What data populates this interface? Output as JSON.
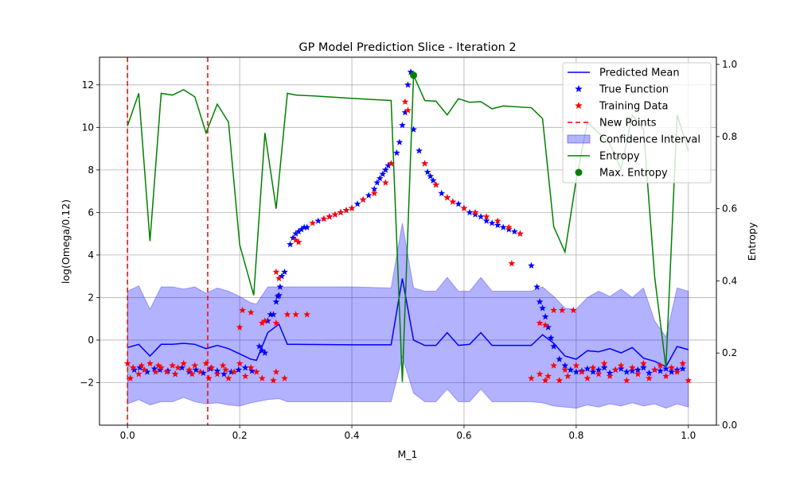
{
  "chart_data": {
    "type": "line",
    "title": "GP Model Prediction Slice - Iteration 2",
    "xlabel": "M_1",
    "ylabel": "log(Omega/0.12)",
    "y2label": "Entropy",
    "xlim": [
      -0.05,
      1.05
    ],
    "ylim": [
      -4.0,
      13.3
    ],
    "y2lim": [
      0.0,
      1.02
    ],
    "xticks": [
      0.0,
      0.2,
      0.4,
      0.6,
      0.8,
      1.0
    ],
    "xtick_labels": [
      "0.0",
      "0.2",
      "0.4",
      "0.6",
      "0.8",
      "1.0"
    ],
    "yticks": [
      -2,
      0,
      2,
      4,
      6,
      8,
      10,
      12
    ],
    "ytick_labels": [
      "−2",
      "0",
      "2",
      "4",
      "6",
      "8",
      "10",
      "12"
    ],
    "y2ticks": [
      0.0,
      0.2,
      0.4,
      0.6,
      0.8,
      1.0
    ],
    "y2tick_labels": [
      "0.0",
      "0.2",
      "0.4",
      "0.6",
      "0.8",
      "1.0"
    ],
    "grid": true,
    "legend_position": "top-right",
    "legend": [
      {
        "key": "mean",
        "label": "Predicted Mean"
      },
      {
        "key": "true",
        "label": "True Function"
      },
      {
        "key": "train",
        "label": "Training Data"
      },
      {
        "key": "new",
        "label": "New Points"
      },
      {
        "key": "ci",
        "label": "Confidence Interval"
      },
      {
        "key": "entropy",
        "label": "Entropy"
      },
      {
        "key": "maxent",
        "label": "Max. Entropy"
      }
    ],
    "colors": {
      "mean": "#0000ff",
      "true": "#0000ff",
      "train": "#ff0000",
      "new": "#ff0000",
      "ci": "#0000ff",
      "entropy": "#008000",
      "maxent": "#008000"
    },
    "new_points_x": [
      0.0,
      0.143
    ],
    "max_entropy_point": {
      "x": 0.51,
      "entropy": 0.97
    },
    "predicted_mean": {
      "x": [
        0.0,
        0.02,
        0.04,
        0.06,
        0.08,
        0.1,
        0.12,
        0.14,
        0.16,
        0.18,
        0.2,
        0.22,
        0.23,
        0.25,
        0.27,
        0.285,
        0.3,
        0.4,
        0.47,
        0.49,
        0.51,
        0.53,
        0.55,
        0.57,
        0.59,
        0.61,
        0.63,
        0.65,
        0.67,
        0.69,
        0.72,
        0.74,
        0.76,
        0.78,
        0.8,
        0.82,
        0.84,
        0.86,
        0.88,
        0.9,
        0.92,
        0.94,
        0.96,
        0.98,
        1.0
      ],
      "y": [
        -0.35,
        -0.2,
        -0.75,
        -0.2,
        -0.2,
        -0.15,
        -0.2,
        -0.4,
        -0.25,
        -0.4,
        -0.65,
        -0.9,
        -0.95,
        0.35,
        0.75,
        -0.2,
        -0.2,
        -0.22,
        -0.22,
        2.9,
        0.0,
        -0.25,
        -0.25,
        0.35,
        -0.25,
        -0.2,
        0.35,
        -0.25,
        -0.25,
        -0.25,
        -0.25,
        0.25,
        -0.15,
        -0.75,
        -0.9,
        -0.5,
        -0.55,
        -0.4,
        -0.6,
        -0.35,
        -0.85,
        -1.0,
        -1.25,
        -0.3,
        -0.45
      ]
    },
    "confidence_interval": {
      "x": [
        0.0,
        0.02,
        0.04,
        0.06,
        0.08,
        0.1,
        0.12,
        0.14,
        0.16,
        0.18,
        0.2,
        0.22,
        0.23,
        0.25,
        0.27,
        0.285,
        0.3,
        0.4,
        0.47,
        0.49,
        0.51,
        0.53,
        0.55,
        0.57,
        0.59,
        0.61,
        0.63,
        0.65,
        0.67,
        0.69,
        0.72,
        0.74,
        0.76,
        0.78,
        0.8,
        0.82,
        0.84,
        0.86,
        0.88,
        0.9,
        0.92,
        0.94,
        0.96,
        0.98,
        1.0
      ],
      "upper": [
        2.3,
        2.55,
        1.45,
        2.5,
        2.5,
        2.4,
        2.5,
        2.2,
        2.45,
        2.3,
        2.05,
        1.75,
        1.7,
        2.5,
        2.5,
        2.5,
        2.5,
        2.5,
        2.45,
        5.5,
        2.45,
        2.3,
        2.3,
        2.95,
        2.3,
        2.3,
        2.95,
        2.3,
        2.3,
        2.3,
        2.3,
        2.5,
        2.05,
        1.5,
        1.45,
        2.0,
        2.3,
        2.05,
        2.4,
        2.0,
        2.45,
        0.9,
        0.15,
        2.45,
        2.3
      ],
      "lower": [
        -3.0,
        -2.8,
        -3.05,
        -2.9,
        -2.9,
        -2.7,
        -2.9,
        -3.0,
        -2.95,
        -3.05,
        -3.1,
        -2.95,
        -2.9,
        -2.8,
        -2.75,
        -2.9,
        -2.9,
        -2.9,
        -2.9,
        -0.8,
        -2.5,
        -2.9,
        -2.9,
        -2.3,
        -2.9,
        -2.9,
        -2.3,
        -2.9,
        -2.9,
        -2.9,
        -2.9,
        -2.95,
        -3.1,
        -3.15,
        -3.2,
        -3.05,
        -3.15,
        -3.0,
        -3.1,
        -2.95,
        -3.1,
        -3.0,
        -3.2,
        -3.0,
        -3.15
      ]
    },
    "entropy": {
      "x": [
        0.0,
        0.02,
        0.04,
        0.06,
        0.08,
        0.1,
        0.12,
        0.14,
        0.16,
        0.18,
        0.2,
        0.225,
        0.245,
        0.265,
        0.285,
        0.3,
        0.33,
        0.4,
        0.47,
        0.49,
        0.51,
        0.53,
        0.55,
        0.57,
        0.59,
        0.61,
        0.63,
        0.65,
        0.67,
        0.69,
        0.72,
        0.74,
        0.76,
        0.78,
        0.8,
        0.82,
        0.84,
        0.86,
        0.88,
        0.9,
        0.92,
        0.94,
        0.96,
        0.98,
        1.0
      ],
      "y": [
        0.83,
        0.92,
        0.51,
        0.92,
        0.915,
        0.93,
        0.91,
        0.81,
        0.89,
        0.84,
        0.5,
        0.36,
        0.81,
        0.6,
        0.92,
        0.915,
        0.913,
        0.906,
        0.9,
        0.12,
        0.97,
        0.9,
        0.898,
        0.86,
        0.905,
        0.895,
        0.897,
        0.877,
        0.885,
        0.883,
        0.88,
        0.85,
        0.55,
        0.48,
        0.68,
        0.84,
        0.81,
        0.78,
        0.71,
        0.86,
        0.82,
        0.41,
        0.16,
        0.86,
        0.76
      ]
    },
    "true_function": {
      "x": [
        0.012,
        0.022,
        0.035,
        0.048,
        0.058,
        0.072,
        0.085,
        0.097,
        0.11,
        0.122,
        0.135,
        0.148,
        0.16,
        0.172,
        0.185,
        0.198,
        0.21,
        0.222,
        0.235,
        0.24,
        0.245,
        0.25,
        0.255,
        0.26,
        0.265,
        0.268,
        0.27,
        0.272,
        0.275,
        0.28,
        0.29,
        0.295,
        0.3,
        0.305,
        0.31,
        0.315,
        0.32,
        0.34,
        0.35,
        0.36,
        0.37,
        0.38,
        0.39,
        0.4,
        0.41,
        0.42,
        0.43,
        0.44,
        0.445,
        0.45,
        0.455,
        0.46,
        0.465,
        0.47,
        0.48,
        0.485,
        0.49,
        0.495,
        0.5,
        0.505,
        0.51,
        0.52,
        0.53,
        0.535,
        0.54,
        0.545,
        0.55,
        0.56,
        0.57,
        0.58,
        0.59,
        0.6,
        0.61,
        0.62,
        0.63,
        0.64,
        0.65,
        0.66,
        0.67,
        0.68,
        0.69,
        0.7,
        0.72,
        0.73,
        0.735,
        0.74,
        0.745,
        0.75,
        0.755,
        0.76,
        0.77,
        0.78,
        0.79,
        0.8,
        0.81,
        0.82,
        0.83,
        0.84,
        0.85,
        0.86,
        0.87,
        0.88,
        0.89,
        0.9,
        0.91,
        0.92,
        0.93,
        0.94,
        0.95,
        0.96,
        0.97,
        0.98,
        0.99
      ],
      "y": [
        -1.4,
        -1.3,
        -1.5,
        -1.35,
        -1.4,
        -1.45,
        -1.6,
        -1.3,
        -1.5,
        -1.4,
        -1.55,
        -1.35,
        -1.45,
        -1.6,
        -1.5,
        -1.4,
        -1.3,
        -1.45,
        -0.3,
        -0.5,
        -0.6,
        0.9,
        1.2,
        1.2,
        1.8,
        2.05,
        2.1,
        2.5,
        3.0,
        3.2,
        4.5,
        4.8,
        5.0,
        5.1,
        5.2,
        5.3,
        5.3,
        5.6,
        5.7,
        5.8,
        5.9,
        6.0,
        6.1,
        6.2,
        6.4,
        6.6,
        6.8,
        7.1,
        7.4,
        7.6,
        7.8,
        8.0,
        8.2,
        8.3,
        8.8,
        9.3,
        10.1,
        10.7,
        12.0,
        12.6,
        9.9,
        8.9,
        8.3,
        7.9,
        7.7,
        7.5,
        7.3,
        6.9,
        6.7,
        6.5,
        6.4,
        6.2,
        6.0,
        5.9,
        5.8,
        5.6,
        5.5,
        5.4,
        5.3,
        5.2,
        5.1,
        5.0,
        3.5,
        2.5,
        1.8,
        1.5,
        1.1,
        0.6,
        0.1,
        -0.3,
        -0.9,
        -1.2,
        -1.4,
        -1.5,
        -1.45,
        -1.35,
        -1.5,
        -1.4,
        -1.3,
        -1.55,
        -1.4,
        -1.35,
        -1.5,
        -1.45,
        -1.4,
        -1.3,
        -1.55,
        -1.4,
        -1.45,
        -1.35,
        -1.5,
        -1.4,
        -1.35
      ]
    },
    "training_data": {
      "x": [
        0.0,
        0.005,
        0.01,
        0.02,
        0.025,
        0.03,
        0.04,
        0.05,
        0.055,
        0.06,
        0.07,
        0.08,
        0.085,
        0.09,
        0.1,
        0.11,
        0.115,
        0.12,
        0.13,
        0.14,
        0.145,
        0.15,
        0.16,
        0.17,
        0.175,
        0.18,
        0.19,
        0.2,
        0.21,
        0.22,
        0.23,
        0.24,
        0.26,
        0.265,
        0.28,
        0.3,
        0.305,
        0.33,
        0.35,
        0.36,
        0.37,
        0.38,
        0.39,
        0.4,
        0.42,
        0.44,
        0.46,
        0.47,
        0.495,
        0.5,
        0.53,
        0.55,
        0.57,
        0.58,
        0.6,
        0.62,
        0.64,
        0.66,
        0.68,
        0.7,
        0.685,
        0.72,
        0.735,
        0.745,
        0.75,
        0.76,
        0.77,
        0.78,
        0.785,
        0.8,
        0.81,
        0.82,
        0.83,
        0.84,
        0.85,
        0.86,
        0.87,
        0.88,
        0.89,
        0.9,
        0.91,
        0.92,
        0.93,
        0.94,
        0.95,
        0.96,
        0.97,
        0.98,
        0.99,
        1.0,
        0.2,
        0.205,
        0.22,
        0.24,
        0.245,
        0.265
      ],
      "y": [
        -1.1,
        -1.8,
        -1.3,
        -1.6,
        -1.2,
        -1.4,
        -1.1,
        -1.5,
        -1.2,
        -1.3,
        -1.5,
        -1.2,
        -1.6,
        -1.3,
        -1.1,
        -1.4,
        -1.6,
        -1.2,
        -1.5,
        -1.1,
        -1.8,
        -1.3,
        -1.6,
        -1.2,
        -1.4,
        -1.8,
        -1.5,
        -1.1,
        -1.7,
        -1.3,
        -1.5,
        -1.8,
        -1.9,
        -1.5,
        -1.8,
        4.7,
        4.6,
        5.5,
        5.7,
        5.8,
        5.9,
        6.0,
        6.1,
        6.2,
        6.6,
        6.9,
        7.4,
        8.3,
        11.2,
        10.8,
        8.3,
        7.3,
        6.7,
        6.5,
        6.2,
        6.0,
        5.8,
        5.6,
        5.3,
        5.0,
        3.6,
        -1.8,
        -1.6,
        -1.9,
        -1.7,
        -1.2,
        -1.9,
        -1.4,
        -1.7,
        -1.2,
        -1.5,
        -1.8,
        -1.3,
        -1.6,
        -1.1,
        -1.7,
        -1.4,
        -1.2,
        -1.9,
        -1.3,
        -1.6,
        -1.1,
        -1.8,
        -1.4,
        -1.2,
        -1.7,
        -1.3,
        -1.5,
        -1.1,
        -1.9,
        0.6,
        1.4,
        1.3,
        0.8,
        0.9,
        0.8
      ]
    },
    "training_data_extra": {
      "x": [
        0.285,
        0.3,
        0.32,
        0.735,
        0.745,
        0.76,
        0.775,
        0.795,
        0.265,
        0.27
      ],
      "y": [
        1.2,
        1.2,
        1.2,
        0.8,
        0.7,
        1.4,
        1.4,
        1.4,
        3.2,
        2.9
      ]
    }
  }
}
